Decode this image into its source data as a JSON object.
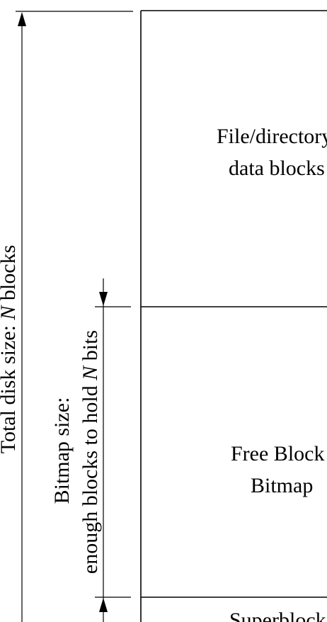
{
  "diagram": {
    "regions": [
      {
        "id": "data",
        "line1": "File/directory",
        "line2": "data blocks"
      },
      {
        "id": "bitmap",
        "line1": "Free Block",
        "line2": "Bitmap"
      },
      {
        "id": "superblock",
        "line1": "Superblock"
      }
    ],
    "total_label": {
      "prefix": "Total disk size: ",
      "var": "N",
      "suffix": " blocks"
    },
    "bitmap_label": {
      "line1": "Bitmap size:",
      "line2_prefix": "enough blocks to hold ",
      "line2_var": "N",
      "line2_suffix": " bits"
    },
    "colors": {
      "ink": "#000000",
      "background": "#ffffff"
    }
  }
}
